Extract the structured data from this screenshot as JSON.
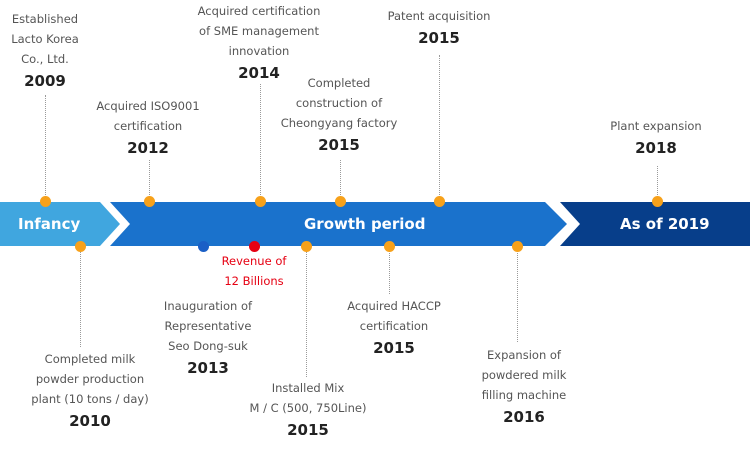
{
  "phases": {
    "infancy": "Infancy",
    "growth": "Growth period",
    "current": "As of 2019"
  },
  "colors": {
    "infancy": "#40a6df",
    "growth": "#1a72cc",
    "current": "#073e8a",
    "dot_orange": "#f7a11a",
    "dot_blue": "#1a5fc6",
    "dot_red": "#e60012"
  },
  "events_top": [
    {
      "desc": [
        "Established",
        "Lacto Korea",
        "Co., Ltd."
      ],
      "year": "2009"
    },
    {
      "desc": [
        "Acquired ISO9001",
        "certification"
      ],
      "year": "2012"
    },
    {
      "desc": [
        "Acquired certification",
        "of SME management",
        "innovation"
      ],
      "year": "2014"
    },
    {
      "desc": [
        "Completed",
        "construction of",
        "Cheongyang factory"
      ],
      "year": "2015"
    },
    {
      "desc": [
        "Patent acquisition"
      ],
      "year": "2015"
    },
    {
      "desc": [
        "Plant expansion"
      ],
      "year": "2018"
    }
  ],
  "events_bottom": [
    {
      "desc": [
        "Completed milk",
        "powder production",
        "plant (10 tons / day)"
      ],
      "year": "2010"
    },
    {
      "desc": [
        "Inauguration of",
        "Representative",
        "Seo Dong-suk"
      ],
      "year": "2013"
    },
    {
      "desc": [
        "Revenue of",
        "12 Billions"
      ],
      "year": ""
    },
    {
      "desc": [
        "Installed Mix",
        "M / C (500, 750Line)"
      ],
      "year": "2015"
    },
    {
      "desc": [
        "Acquired HACCP",
        "certification"
      ],
      "year": "2015"
    },
    {
      "desc": [
        "Expansion of",
        "powdered milk",
        "filling machine"
      ],
      "year": "2016"
    }
  ]
}
